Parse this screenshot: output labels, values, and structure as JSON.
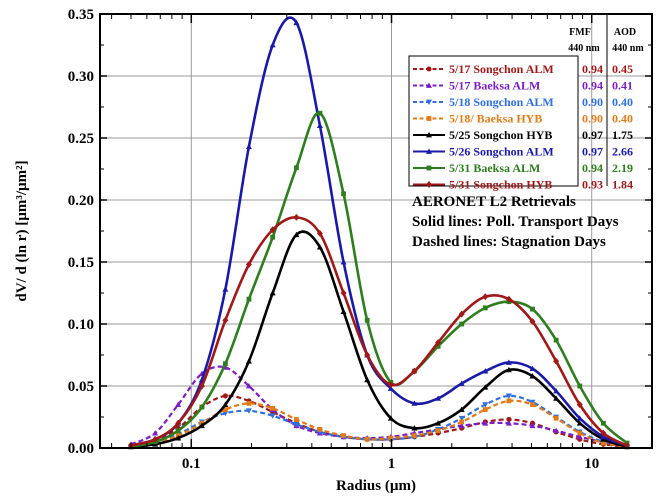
{
  "chart_data": {
    "type": "line",
    "xlabel": "Radius (µm)",
    "ylabel": "dV/ d (ln r)  [µm³/µm²]",
    "xscale": "log",
    "xlim": [
      0.035,
      20
    ],
    "ylim": [
      0,
      0.35
    ],
    "x_ticks": [
      "0.1",
      "1",
      "10"
    ],
    "y_ticks": [
      "0.00",
      "0.05",
      "0.10",
      "0.15",
      "0.20",
      "0.25",
      "0.30",
      "0.35"
    ],
    "grid": true,
    "legend_position": "top-right",
    "legend_headers": {
      "fmf": [
        "FMF",
        "440 nm"
      ],
      "aod": [
        "AOD",
        "440 nm"
      ]
    },
    "annotations": [
      "AERONET L2 Retrievals",
      "Solid lines: Poll. Transport Days",
      "Dashed lines: Stagnation Days"
    ],
    "x": [
      0.05,
      0.066,
      0.086,
      0.113,
      0.148,
      0.194,
      0.255,
      0.335,
      0.439,
      0.576,
      0.756,
      0.992,
      1.302,
      1.708,
      2.241,
      2.94,
      3.857,
      5.06,
      6.641,
      8.713,
      11.432,
      15.0
    ],
    "series": [
      {
        "name": "5/17 Songchon ALM",
        "fmf": "0.94",
        "aod": "0.45",
        "color": "#a01818",
        "dash": true,
        "marker": "circle",
        "values": [
          0.002,
          0.006,
          0.016,
          0.033,
          0.042,
          0.038,
          0.029,
          0.02,
          0.013,
          0.009,
          0.007,
          0.007,
          0.009,
          0.012,
          0.016,
          0.021,
          0.023,
          0.02,
          0.013,
          0.007,
          0.003,
          0.001
        ]
      },
      {
        "name": "5/17 Baeksa ALM",
        "fmf": "0.94",
        "aod": "0.41",
        "color": "#7b1fc4",
        "dash": true,
        "marker": "triangle",
        "values": [
          0.003,
          0.012,
          0.035,
          0.06,
          0.065,
          0.05,
          0.031,
          0.018,
          0.012,
          0.009,
          0.008,
          0.009,
          0.012,
          0.015,
          0.018,
          0.02,
          0.02,
          0.018,
          0.014,
          0.009,
          0.005,
          0.002
        ]
      },
      {
        "name": "5/18 Songchon ALM",
        "fmf": "0.90",
        "aod": "0.40",
        "color": "#2f6fe0",
        "dash": true,
        "marker": "triangle-down",
        "values": [
          0.001,
          0.004,
          0.011,
          0.021,
          0.028,
          0.03,
          0.026,
          0.019,
          0.013,
          0.009,
          0.007,
          0.007,
          0.009,
          0.015,
          0.024,
          0.035,
          0.042,
          0.037,
          0.025,
          0.013,
          0.005,
          0.001
        ]
      },
      {
        "name": "5/18/ Baeksa HYB",
        "fmf": "0.90",
        "aod": "0.40",
        "color": "#e07b1a",
        "dash": true,
        "marker": "square",
        "values": [
          0.001,
          0.004,
          0.01,
          0.02,
          0.031,
          0.036,
          0.032,
          0.023,
          0.015,
          0.01,
          0.007,
          0.008,
          0.01,
          0.014,
          0.021,
          0.031,
          0.038,
          0.035,
          0.024,
          0.012,
          0.004,
          0.001
        ]
      },
      {
        "name": "5/25 Songchon HYB",
        "fmf": "0.97",
        "aod": "1.75",
        "color": "#000000",
        "dash": false,
        "marker": "triangle",
        "values": [
          0.001,
          0.003,
          0.008,
          0.018,
          0.035,
          0.07,
          0.125,
          0.172,
          0.162,
          0.11,
          0.055,
          0.024,
          0.016,
          0.02,
          0.031,
          0.049,
          0.063,
          0.058,
          0.04,
          0.02,
          0.007,
          0.001
        ]
      },
      {
        "name": "5/26 Songchon ALM",
        "fmf": "0.97",
        "aod": "2.66",
        "color": "#1a1aa8",
        "dash": false,
        "marker": "triangle",
        "values": [
          0.002,
          0.007,
          0.02,
          0.055,
          0.128,
          0.243,
          0.325,
          0.343,
          0.26,
          0.15,
          0.075,
          0.048,
          0.036,
          0.04,
          0.052,
          0.062,
          0.069,
          0.064,
          0.046,
          0.024,
          0.009,
          0.002
        ]
      },
      {
        "name": "5/31 Baeksa ALM",
        "fmf": "0.94",
        "aod": "2.19",
        "color": "#2e7d1e",
        "dash": false,
        "marker": "square",
        "values": [
          0.001,
          0.005,
          0.014,
          0.033,
          0.068,
          0.12,
          0.17,
          0.226,
          0.27,
          0.205,
          0.103,
          0.053,
          0.062,
          0.082,
          0.1,
          0.113,
          0.118,
          0.112,
          0.087,
          0.05,
          0.02,
          0.004
        ]
      },
      {
        "name": "5/31 Songchon HYB",
        "fmf": "0.93",
        "aod": "1.84",
        "color": "#a01818",
        "dash": false,
        "marker": "diamond",
        "values": [
          0.002,
          0.007,
          0.02,
          0.05,
          0.103,
          0.148,
          0.176,
          0.186,
          0.173,
          0.125,
          0.075,
          0.051,
          0.062,
          0.085,
          0.108,
          0.122,
          0.12,
          0.102,
          0.07,
          0.035,
          0.012,
          0.002
        ]
      }
    ]
  }
}
